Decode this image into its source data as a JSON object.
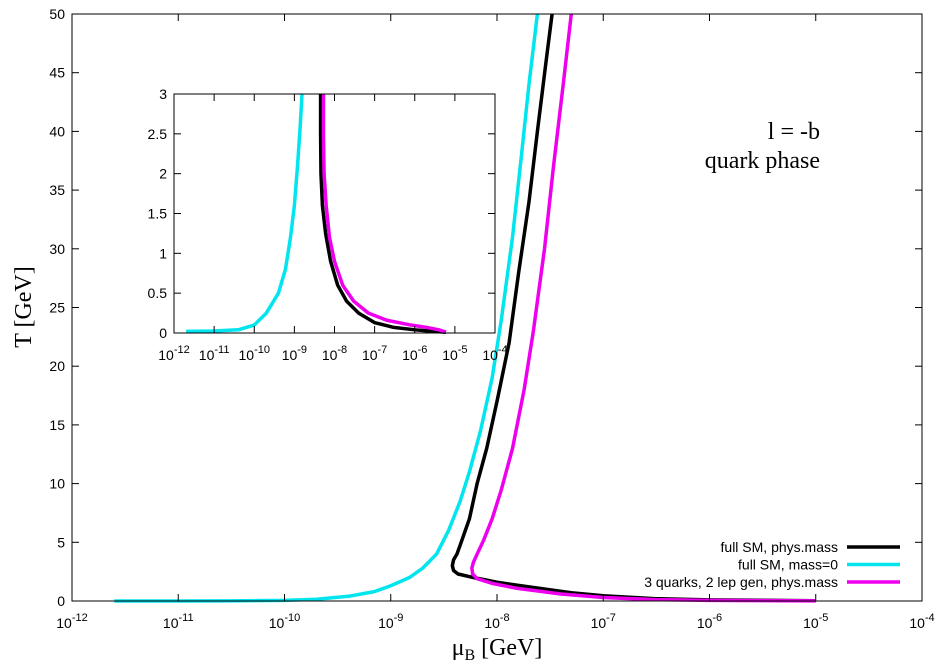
{
  "chart_data": {
    "type": "line",
    "title": "",
    "xlabel": "μ",
    "xlabel_sub": "B",
    "xlabel_unit": " [GeV]",
    "ylabel": "T [GeV]",
    "x_scale": "log",
    "xlim": [
      1e-12,
      0.0001
    ],
    "ylim": [
      0,
      50
    ],
    "x_ticks": [
      1e-12,
      1e-11,
      1e-10,
      1e-09,
      1e-08,
      1e-07,
      1e-06,
      1e-05,
      0.0001
    ],
    "x_tick_labels": [
      {
        "base": "10",
        "exp": "-12"
      },
      {
        "base": "10",
        "exp": "-11"
      },
      {
        "base": "10",
        "exp": "-10"
      },
      {
        "base": "10",
        "exp": "-9"
      },
      {
        "base": "10",
        "exp": "-8"
      },
      {
        "base": "10",
        "exp": "-7"
      },
      {
        "base": "10",
        "exp": "-6"
      },
      {
        "base": "10",
        "exp": "-5"
      },
      {
        "base": "10",
        "exp": "-4"
      }
    ],
    "y_ticks": [
      0,
      5,
      10,
      15,
      20,
      25,
      30,
      35,
      40,
      45,
      50
    ],
    "y_tick_labels": [
      "0",
      "5",
      "10",
      "15",
      "20",
      "25",
      "30",
      "35",
      "40",
      "45",
      "50"
    ],
    "annotations": [
      "l = -b",
      "quark phase"
    ],
    "legend_position": "bottom-right",
    "grid": false,
    "series": [
      {
        "name": "full SM, phys.mass",
        "color": "#000000",
        "points": [
          [
            1e-05,
            0.02
          ],
          [
            1e-06,
            0.1
          ],
          [
            3e-07,
            0.2
          ],
          [
            1e-07,
            0.45
          ],
          [
            5e-08,
            0.7
          ],
          [
            2e-08,
            1.2
          ],
          [
            1e-08,
            1.6
          ],
          [
            6e-09,
            2.0
          ],
          [
            4.3e-09,
            2.3
          ],
          [
            3.9e-09,
            2.6
          ],
          [
            3.8e-09,
            3.0
          ],
          [
            3.9e-09,
            3.5
          ],
          [
            4.2e-09,
            4.0
          ],
          [
            4.6e-09,
            5.0
          ],
          [
            5.5e-09,
            7.0
          ],
          [
            6.5e-09,
            10.0
          ],
          [
            8e-09,
            13.0
          ],
          [
            1e-08,
            17.0
          ],
          [
            1.3e-08,
            22.0
          ],
          [
            1.6e-08,
            28.0
          ],
          [
            2e-08,
            34.0
          ],
          [
            2.4e-08,
            40.0
          ],
          [
            2.9e-08,
            46.0
          ],
          [
            3.3e-08,
            50.0
          ]
        ]
      },
      {
        "name": "full SM, mass=0",
        "color": "#00e5ee",
        "points": [
          [
            2.5e-12,
            0.0
          ],
          [
            1e-11,
            0.002
          ],
          [
            3e-11,
            0.01
          ],
          [
            1e-10,
            0.05
          ],
          [
            2e-10,
            0.15
          ],
          [
            4e-10,
            0.4
          ],
          [
            7e-10,
            0.8
          ],
          [
            1e-09,
            1.3
          ],
          [
            1.5e-09,
            2.0
          ],
          [
            2e-09,
            2.8
          ],
          [
            2.7e-09,
            4.0
          ],
          [
            3.5e-09,
            6.0
          ],
          [
            4.5e-09,
            8.5
          ],
          [
            5.5e-09,
            11.0
          ],
          [
            7e-09,
            14.5
          ],
          [
            9e-09,
            19.0
          ],
          [
            1.1e-08,
            24.0
          ],
          [
            1.4e-08,
            31.0
          ],
          [
            1.7e-08,
            38.0
          ],
          [
            2e-08,
            44.0
          ],
          [
            2.4e-08,
            50.0
          ]
        ]
      },
      {
        "name": "3 quarks, 2 lep gen, phys.mass",
        "color": "#ee00ee",
        "points": [
          [
            1e-05,
            0.01
          ],
          [
            1e-06,
            0.05
          ],
          [
            3e-07,
            0.12
          ],
          [
            1e-07,
            0.3
          ],
          [
            4e-08,
            0.6
          ],
          [
            1.5e-08,
            1.1
          ],
          [
            9e-09,
            1.5
          ],
          [
            6.5e-09,
            1.9
          ],
          [
            5.9e-09,
            2.3
          ],
          [
            5.8e-09,
            2.8
          ],
          [
            6e-09,
            3.3
          ],
          [
            6.5e-09,
            4.0
          ],
          [
            7.5e-09,
            5.2
          ],
          [
            9e-09,
            7.0
          ],
          [
            1.1e-08,
            9.5
          ],
          [
            1.4e-08,
            13.0
          ],
          [
            1.8e-08,
            18.0
          ],
          [
            2.2e-08,
            23.0
          ],
          [
            2.8e-08,
            30.0
          ],
          [
            3.4e-08,
            37.0
          ],
          [
            4.2e-08,
            44.0
          ],
          [
            5e-08,
            50.0
          ]
        ]
      }
    ],
    "inset": {
      "x_scale": "log",
      "xlim": [
        1e-12,
        0.0001
      ],
      "ylim": [
        0,
        3
      ],
      "x_ticks": [
        1e-12,
        1e-11,
        1e-10,
        1e-09,
        1e-08,
        1e-07,
        1e-06,
        1e-05,
        0.0001
      ],
      "x_tick_labels": [
        {
          "base": "10",
          "exp": "-12"
        },
        {
          "base": "10",
          "exp": "-11"
        },
        {
          "base": "10",
          "exp": "-10"
        },
        {
          "base": "10",
          "exp": "-9"
        },
        {
          "base": "10",
          "exp": "-8"
        },
        {
          "base": "10",
          "exp": "-7"
        },
        {
          "base": "10",
          "exp": "-6"
        },
        {
          "base": "10",
          "exp": "-5"
        },
        {
          "base": "10",
          "exp": "-4"
        }
      ],
      "y_ticks": [
        0,
        0.5,
        1,
        1.5,
        2,
        2.5,
        3
      ],
      "y_tick_labels": [
        "0",
        "0.5",
        "1",
        "1.5",
        "2",
        "2.5",
        "3"
      ],
      "series": [
        {
          "color": "#000000",
          "points": [
            [
              4.5e-09,
              3.0
            ],
            [
              4.5e-09,
              2.5
            ],
            [
              4.6e-09,
              2.0
            ],
            [
              5e-09,
              1.6
            ],
            [
              6e-09,
              1.25
            ],
            [
              8e-09,
              0.9
            ],
            [
              1.2e-08,
              0.6
            ],
            [
              2e-08,
              0.4
            ],
            [
              4e-08,
              0.25
            ],
            [
              1e-07,
              0.13
            ],
            [
              3e-07,
              0.07
            ],
            [
              1e-06,
              0.04
            ],
            [
              3e-06,
              0.02
            ],
            [
              6e-06,
              0.01
            ]
          ]
        },
        {
          "color": "#00e5ee",
          "points": [
            [
              2e-12,
              0.02
            ],
            [
              1e-11,
              0.025
            ],
            [
              4e-11,
              0.04
            ],
            [
              1e-10,
              0.1
            ],
            [
              2e-10,
              0.25
            ],
            [
              4e-10,
              0.5
            ],
            [
              6e-10,
              0.8
            ],
            [
              8e-10,
              1.2
            ],
            [
              1e-09,
              1.6
            ],
            [
              1.2e-09,
              2.1
            ],
            [
              1.4e-09,
              2.6
            ],
            [
              1.55e-09,
              3.0
            ]
          ]
        },
        {
          "color": "#ee00ee",
          "points": [
            [
              5.3e-09,
              3.0
            ],
            [
              5.3e-09,
              2.5
            ],
            [
              5.5e-09,
              2.0
            ],
            [
              6.2e-09,
              1.6
            ],
            [
              7.5e-09,
              1.2
            ],
            [
              1e-08,
              0.9
            ],
            [
              1.6e-08,
              0.6
            ],
            [
              3e-08,
              0.4
            ],
            [
              7e-08,
              0.25
            ],
            [
              2e-07,
              0.16
            ],
            [
              8e-07,
              0.1
            ],
            [
              2e-06,
              0.07
            ],
            [
              4e-06,
              0.04
            ],
            [
              6e-06,
              0.01
            ]
          ]
        }
      ]
    }
  }
}
